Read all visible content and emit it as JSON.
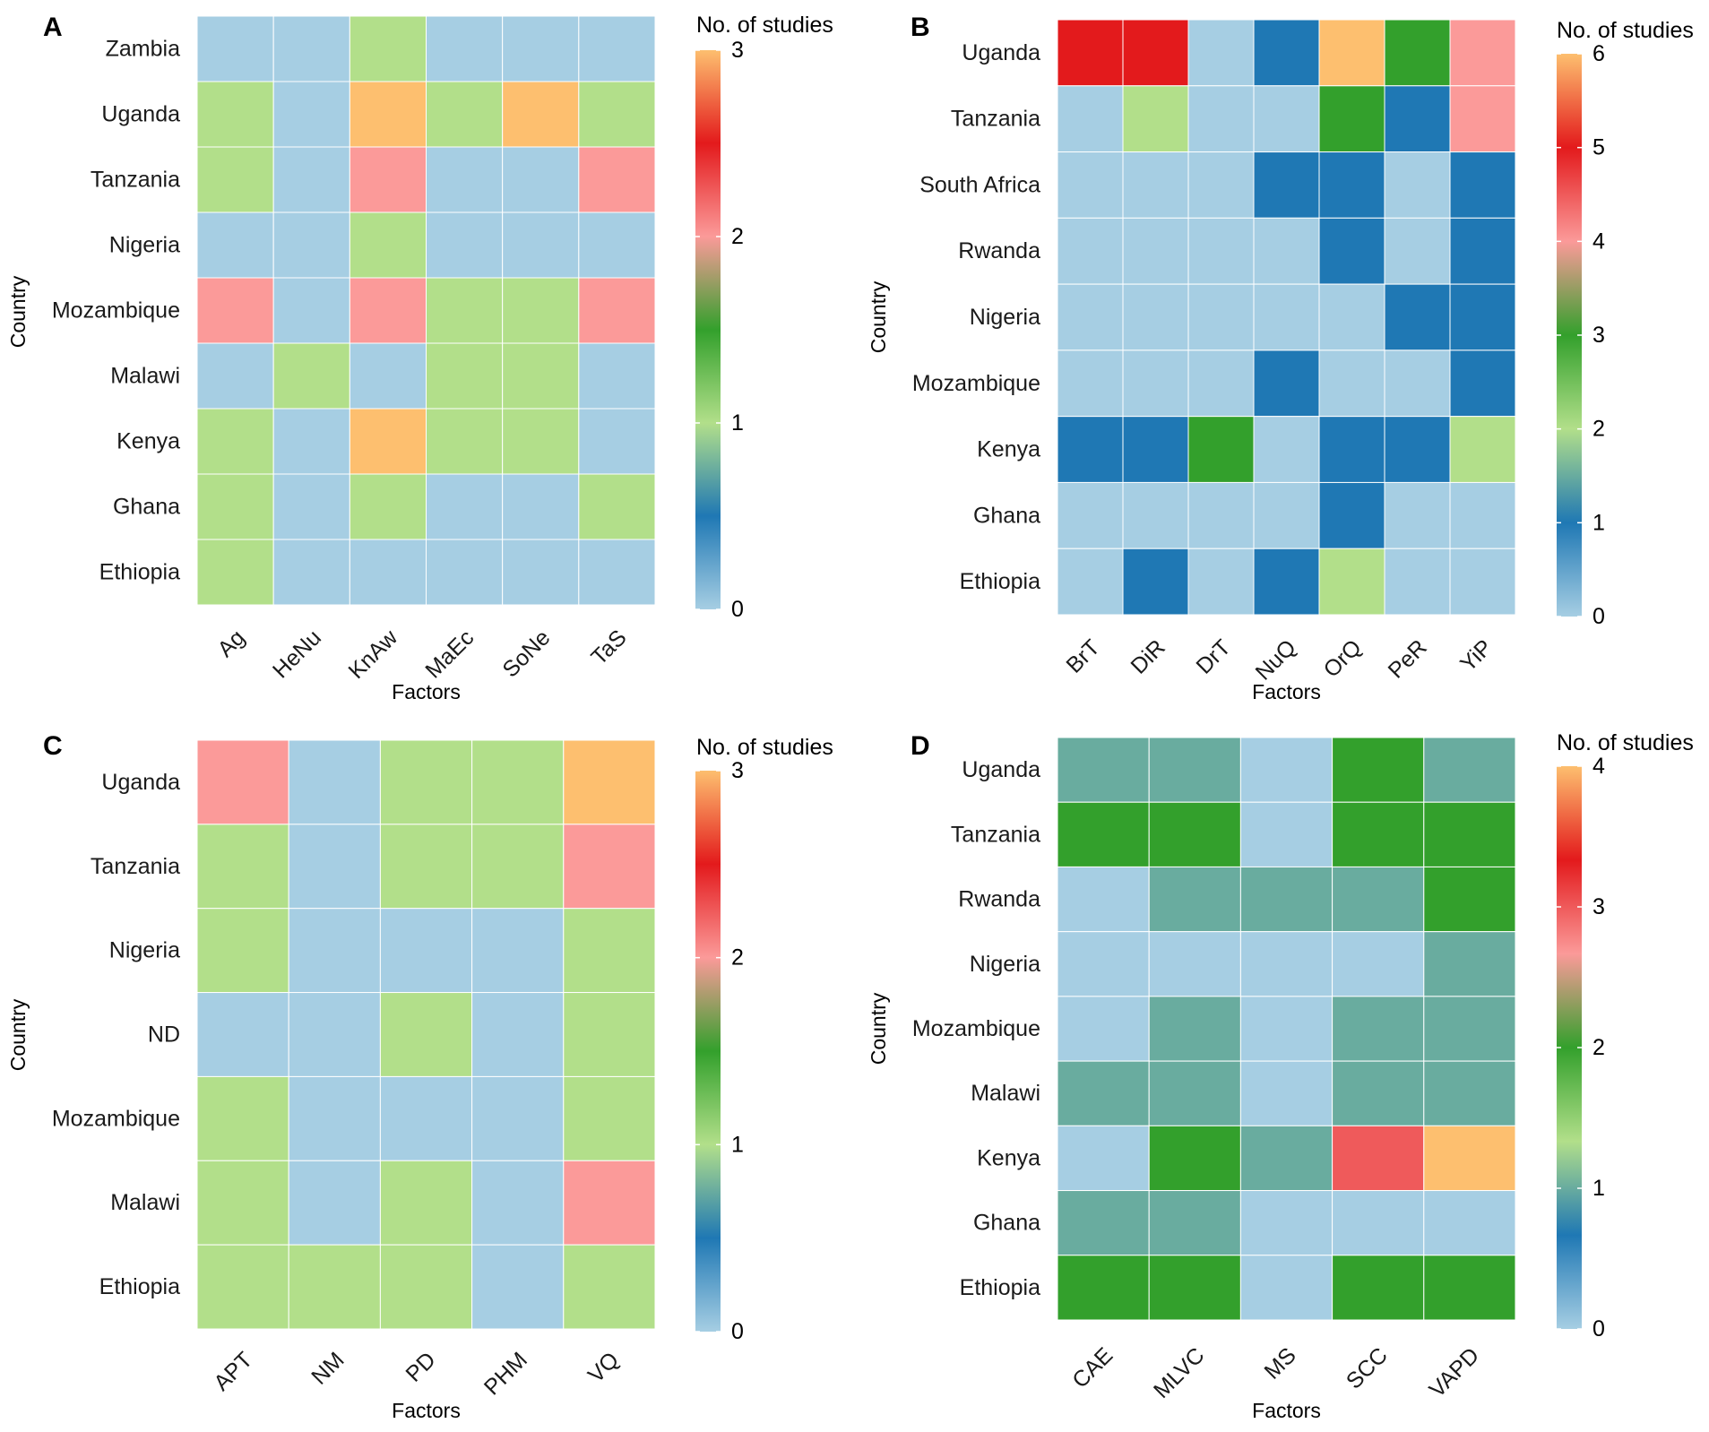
{
  "chart_data": [
    {
      "panel": "A",
      "type": "heatmap",
      "xlabel": "Factors",
      "ylabel": "Country",
      "legend_title": "No. of studies",
      "color_range": [
        0,
        3
      ],
      "legend_ticks": [
        0,
        1,
        2,
        3
      ],
      "x": [
        "Ag",
        "HeNu",
        "KnAw",
        "MaEc",
        "SoNe",
        "TaS"
      ],
      "y": [
        "Zambia",
        "Uganda",
        "Tanzania",
        "Nigeria",
        "Mozambique",
        "Malawi",
        "Kenya",
        "Ghana",
        "Ethiopia"
      ],
      "values": [
        [
          0,
          0,
          1,
          0,
          0,
          0
        ],
        [
          1,
          0,
          3,
          1,
          3,
          1
        ],
        [
          1,
          0,
          2,
          0,
          0,
          2
        ],
        [
          0,
          0,
          1,
          0,
          0,
          0
        ],
        [
          2,
          0,
          2,
          1,
          1,
          2
        ],
        [
          0,
          1,
          0,
          1,
          1,
          0
        ],
        [
          1,
          0,
          3,
          1,
          1,
          0
        ],
        [
          1,
          0,
          1,
          0,
          0,
          1
        ],
        [
          1,
          0,
          0,
          0,
          0,
          0
        ]
      ]
    },
    {
      "panel": "B",
      "type": "heatmap",
      "xlabel": "Factors",
      "ylabel": "Country",
      "legend_title": "No. of studies",
      "color_range": [
        0,
        6
      ],
      "legend_ticks": [
        0,
        1,
        2,
        3,
        4,
        5,
        6
      ],
      "x": [
        "BrT",
        "DiR",
        "DrT",
        "NuQ",
        "OrQ",
        "PeR",
        "YiP"
      ],
      "y": [
        "Uganda",
        "Tanzania",
        "South Africa",
        "Rwanda",
        "Nigeria",
        "Mozambique",
        "Kenya",
        "Ghana",
        "Ethiopia"
      ],
      "values": [
        [
          5,
          5,
          0,
          1,
          6,
          3,
          4
        ],
        [
          0,
          2,
          0,
          0,
          3,
          1,
          4
        ],
        [
          0,
          0,
          0,
          1,
          1,
          0,
          1
        ],
        [
          0,
          0,
          0,
          0,
          1,
          0,
          1
        ],
        [
          0,
          0,
          0,
          0,
          0,
          1,
          1
        ],
        [
          0,
          0,
          0,
          1,
          0,
          0,
          1
        ],
        [
          1,
          1,
          3,
          0,
          1,
          1,
          2
        ],
        [
          0,
          0,
          0,
          0,
          1,
          0,
          0
        ],
        [
          0,
          1,
          0,
          1,
          2,
          0,
          0
        ]
      ]
    },
    {
      "panel": "C",
      "type": "heatmap",
      "xlabel": "Factors",
      "ylabel": "Country",
      "legend_title": "No. of studies",
      "color_range": [
        0,
        3
      ],
      "legend_ticks": [
        0,
        1,
        2,
        3
      ],
      "x": [
        "APT",
        "NM",
        "PD",
        "PHM",
        "VQ"
      ],
      "y": [
        "Uganda",
        "Tanzania",
        "Nigeria",
        "ND",
        "Mozambique",
        "Malawi",
        "Ethiopia"
      ],
      "values": [
        [
          2,
          0,
          1,
          1,
          3
        ],
        [
          1,
          0,
          1,
          1,
          2
        ],
        [
          1,
          0,
          0,
          0,
          1
        ],
        [
          0,
          0,
          1,
          0,
          1
        ],
        [
          1,
          0,
          0,
          0,
          1
        ],
        [
          1,
          0,
          1,
          0,
          2
        ],
        [
          1,
          1,
          1,
          0,
          1
        ]
      ]
    },
    {
      "panel": "D",
      "type": "heatmap",
      "xlabel": "Factors",
      "ylabel": "Country",
      "legend_title": "No. of studies",
      "color_range": [
        0,
        4
      ],
      "legend_ticks": [
        0,
        1,
        2,
        3,
        4
      ],
      "x": [
        "CAE",
        "MLVC",
        "MS",
        "SCC",
        "VAPD"
      ],
      "y": [
        "Uganda",
        "Tanzania",
        "Rwanda",
        "Nigeria",
        "Mozambique",
        "Malawi",
        "Kenya",
        "Ghana",
        "Ethiopia"
      ],
      "values": [
        [
          1,
          1,
          0,
          2,
          1
        ],
        [
          2,
          2,
          0,
          2,
          2
        ],
        [
          0,
          1,
          1,
          1,
          2
        ],
        [
          0,
          0,
          0,
          0,
          1
        ],
        [
          0,
          1,
          0,
          1,
          1
        ],
        [
          1,
          1,
          0,
          1,
          1
        ],
        [
          0,
          2,
          1,
          3,
          4
        ],
        [
          1,
          1,
          0,
          0,
          0
        ],
        [
          2,
          2,
          0,
          2,
          2
        ]
      ]
    }
  ],
  "colors": {
    "scale": [
      "#a6cee3",
      "#1f78b4",
      "#b2df8a",
      "#33a02c",
      "#fb9a99",
      "#e31a1c",
      "#fdbf6f"
    ],
    "cell_border": "#ffffff"
  }
}
